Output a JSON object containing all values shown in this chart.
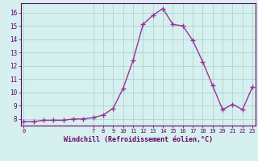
{
  "x": [
    0,
    1,
    2,
    3,
    4,
    5,
    6,
    7,
    8,
    9,
    10,
    11,
    12,
    13,
    14,
    15,
    16,
    17,
    18,
    19,
    20,
    21,
    22,
    23
  ],
  "y": [
    7.8,
    7.8,
    7.9,
    7.9,
    7.9,
    8.0,
    8.0,
    8.1,
    8.3,
    8.8,
    10.3,
    12.4,
    15.1,
    15.8,
    16.3,
    15.1,
    15.0,
    13.9,
    12.3,
    10.5,
    8.7,
    9.1,
    8.7,
    10.4
  ],
  "line_color": "#993399",
  "marker": "+",
  "marker_size": 4,
  "bg_color": "#d5f0ee",
  "grid_color": "#aacccc",
  "xlabel": "Windchill (Refroidissement éolien,°C)",
  "xlabel_color": "#660066",
  "tick_color": "#660066",
  "ylim": [
    7.5,
    16.7
  ],
  "xlim": [
    -0.3,
    23.3
  ],
  "yticks": [
    8,
    9,
    10,
    11,
    12,
    13,
    14,
    15,
    16
  ],
  "xticks": [
    0,
    7,
    8,
    9,
    10,
    11,
    12,
    13,
    14,
    15,
    16,
    17,
    18,
    19,
    20,
    21,
    22,
    23
  ],
  "line_width": 1.0
}
